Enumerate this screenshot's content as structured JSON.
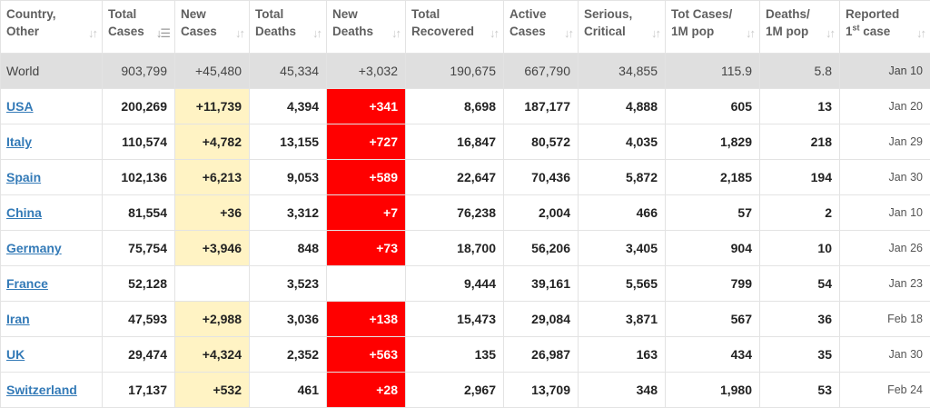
{
  "colors": {
    "new_cases_bg": "#fff3c4",
    "new_deaths_bg": "#ff0000",
    "world_row_bg": "#dfdfdf",
    "link": "#337ab7"
  },
  "headers": [
    {
      "line1": "Country,",
      "line2": "Other",
      "sort_icon": "sort-updown-icon"
    },
    {
      "line1": "Total",
      "line2": "Cases",
      "sort_icon": "sort-desc-icon"
    },
    {
      "line1": "New",
      "line2": "Cases",
      "sort_icon": "sort-updown-icon"
    },
    {
      "line1": "Total",
      "line2": "Deaths",
      "sort_icon": "sort-updown-icon"
    },
    {
      "line1": "New",
      "line2": "Deaths",
      "sort_icon": "sort-updown-icon"
    },
    {
      "line1": "Total",
      "line2": "Recovered",
      "sort_icon": "sort-updown-icon"
    },
    {
      "line1": "Active",
      "line2": "Cases",
      "sort_icon": "sort-updown-icon"
    },
    {
      "line1": "Serious,",
      "line2": "Critical",
      "sort_icon": "sort-updown-icon"
    },
    {
      "line1": "Tot Cases/",
      "line2": "1M pop",
      "sort_icon": "sort-updown-icon"
    },
    {
      "line1": "Deaths/",
      "line2": "1M pop",
      "sort_icon": "sort-updown-icon"
    },
    {
      "line1": "Reported",
      "line2_pre": "1",
      "line2_sup": "st",
      "line2_post": " case",
      "sort_icon": "sort-updown-icon"
    }
  ],
  "world": {
    "country": "World",
    "total_cases": "903,799",
    "new_cases": "+45,480",
    "total_deaths": "45,334",
    "new_deaths": "+3,032",
    "total_recovered": "190,675",
    "active_cases": "667,790",
    "serious_critical": "34,855",
    "cases_per_1m": "115.9",
    "deaths_per_1m": "5.8",
    "first_case": "Jan 10"
  },
  "rows": [
    {
      "country": "USA",
      "total_cases": "200,269",
      "new_cases": "+11,739",
      "total_deaths": "4,394",
      "new_deaths": "+341",
      "total_recovered": "8,698",
      "active_cases": "187,177",
      "serious_critical": "4,888",
      "cases_per_1m": "605",
      "deaths_per_1m": "13",
      "first_case": "Jan 20"
    },
    {
      "country": "Italy",
      "total_cases": "110,574",
      "new_cases": "+4,782",
      "total_deaths": "13,155",
      "new_deaths": "+727",
      "total_recovered": "16,847",
      "active_cases": "80,572",
      "serious_critical": "4,035",
      "cases_per_1m": "1,829",
      "deaths_per_1m": "218",
      "first_case": "Jan 29"
    },
    {
      "country": "Spain",
      "total_cases": "102,136",
      "new_cases": "+6,213",
      "total_deaths": "9,053",
      "new_deaths": "+589",
      "total_recovered": "22,647",
      "active_cases": "70,436",
      "serious_critical": "5,872",
      "cases_per_1m": "2,185",
      "deaths_per_1m": "194",
      "first_case": "Jan 30"
    },
    {
      "country": "China",
      "total_cases": "81,554",
      "new_cases": "+36",
      "total_deaths": "3,312",
      "new_deaths": "+7",
      "total_recovered": "76,238",
      "active_cases": "2,004",
      "serious_critical": "466",
      "cases_per_1m": "57",
      "deaths_per_1m": "2",
      "first_case": "Jan 10"
    },
    {
      "country": "Germany",
      "total_cases": "75,754",
      "new_cases": "+3,946",
      "total_deaths": "848",
      "new_deaths": "+73",
      "total_recovered": "18,700",
      "active_cases": "56,206",
      "serious_critical": "3,405",
      "cases_per_1m": "904",
      "deaths_per_1m": "10",
      "first_case": "Jan 26"
    },
    {
      "country": "France",
      "total_cases": "52,128",
      "new_cases": "",
      "total_deaths": "3,523",
      "new_deaths": "",
      "total_recovered": "9,444",
      "active_cases": "39,161",
      "serious_critical": "5,565",
      "cases_per_1m": "799",
      "deaths_per_1m": "54",
      "first_case": "Jan 23"
    },
    {
      "country": "Iran",
      "total_cases": "47,593",
      "new_cases": "+2,988",
      "total_deaths": "3,036",
      "new_deaths": "+138",
      "total_recovered": "15,473",
      "active_cases": "29,084",
      "serious_critical": "3,871",
      "cases_per_1m": "567",
      "deaths_per_1m": "36",
      "first_case": "Feb 18"
    },
    {
      "country": "UK",
      "total_cases": "29,474",
      "new_cases": "+4,324",
      "total_deaths": "2,352",
      "new_deaths": "+563",
      "total_recovered": "135",
      "active_cases": "26,987",
      "serious_critical": "163",
      "cases_per_1m": "434",
      "deaths_per_1m": "35",
      "first_case": "Jan 30"
    },
    {
      "country": "Switzerland",
      "total_cases": "17,137",
      "new_cases": "+532",
      "total_deaths": "461",
      "new_deaths": "+28",
      "total_recovered": "2,967",
      "active_cases": "13,709",
      "serious_critical": "348",
      "cases_per_1m": "1,980",
      "deaths_per_1m": "53",
      "first_case": "Feb 24"
    }
  ]
}
